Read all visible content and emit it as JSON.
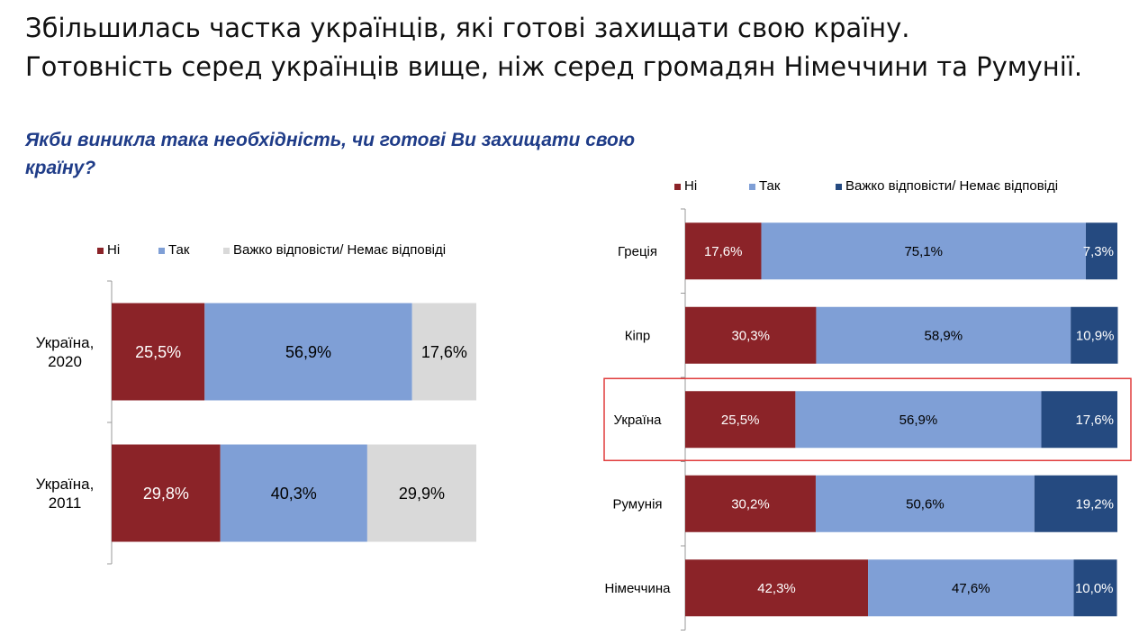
{
  "header": {
    "title_line1": "Збільшилась частка українців, які готові захищати свою країну.",
    "title_line2": "Готовність серед українців вище, ніж серед громадян Німеччини та Румунії."
  },
  "question": "Якби виникла така необхідність, чи готові Ви захищати свою країну?",
  "chart_data": [
    {
      "type": "bar",
      "orientation": "horizontal",
      "stacked": true,
      "legend": {
        "placement": "top"
      },
      "categories": [
        "Україна, 2020",
        "Україна, 2011"
      ],
      "series": [
        {
          "name": "Ні",
          "color": "#8b2328",
          "values": [
            25.5,
            29.8
          ],
          "labels": [
            "25,5%",
            "29,8%"
          ]
        },
        {
          "name": "Так",
          "color": "#7f9fd6",
          "values": [
            56.9,
            40.3
          ],
          "labels": [
            "56,9%",
            "40,3%"
          ]
        },
        {
          "name": "Важко відповісти/ Немає відповіді",
          "color": "#d9d9d9",
          "values": [
            17.6,
            29.9
          ],
          "labels": [
            "17,6%",
            "29,9%"
          ]
        }
      ],
      "xlim": [
        0,
        100
      ],
      "grid": false
    },
    {
      "type": "bar",
      "orientation": "horizontal",
      "stacked": true,
      "legend": {
        "placement": "top"
      },
      "categories": [
        "Греція",
        "Кіпр",
        "Україна",
        "Румунія",
        "Німеччина"
      ],
      "highlighted_category": "Україна",
      "highlight_color": "#e03c3c",
      "series": [
        {
          "name": "Ні",
          "color": "#8b2328",
          "values": [
            17.6,
            30.3,
            25.5,
            30.2,
            42.3
          ],
          "labels": [
            "17,6%",
            "30,3%",
            "25,5%",
            "30,2%",
            "42,3%"
          ]
        },
        {
          "name": "Так",
          "color": "#7f9fd6",
          "values": [
            75.1,
            58.9,
            56.9,
            50.6,
            47.6
          ],
          "labels": [
            "75,1%",
            "58,9%",
            "56,9%",
            "50,6%",
            "47,6%"
          ]
        },
        {
          "name": "Важко відповісти/ Немає відповіді",
          "color": "#254a80",
          "values": [
            7.3,
            10.9,
            17.6,
            19.2,
            10.0
          ],
          "labels": [
            "7,3%",
            "10,9%",
            "17,6%",
            "19,2%",
            "10,0%"
          ]
        }
      ],
      "xlim": [
        0,
        100
      ],
      "grid": false
    }
  ]
}
